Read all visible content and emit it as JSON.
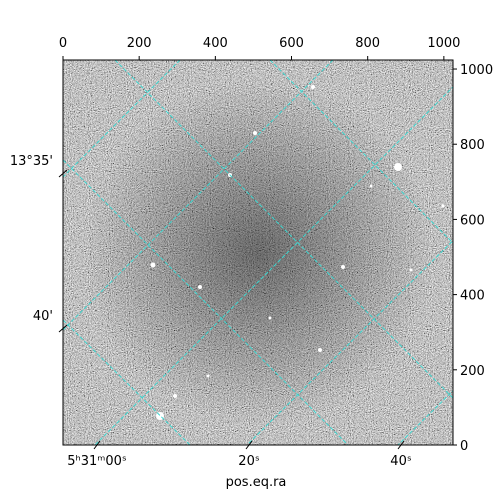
{
  "chart_data": {
    "type": "image",
    "xlabel": "pos.eq.ra",
    "xlim": [
      0,
      1024
    ],
    "ylim": [
      0,
      1024
    ],
    "xticks": [
      0,
      200,
      400,
      600,
      800,
      1000
    ],
    "yticks": [
      0,
      200,
      400,
      600,
      800,
      1000
    ],
    "ra_ticks": [
      "5ʰ31ᵐ00ˢ",
      "20ˢ",
      "40ˢ"
    ],
    "dec_ticks": [
      "13°35'",
      "40'"
    ]
  }
}
